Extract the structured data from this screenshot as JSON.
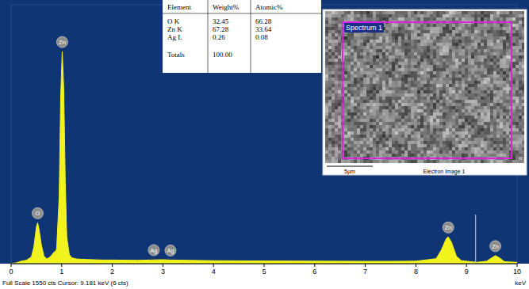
{
  "chart_data": {
    "type": "area",
    "color": "#f2f21c",
    "x_label": "keV",
    "footer": "Full Scale 1550 cts Cursor: 9.181 keV (6 cts)",
    "cursor_x": 9.181,
    "x": [
      0.0,
      0.1,
      0.2,
      0.3,
      0.4,
      0.45,
      0.5,
      0.525,
      0.55,
      0.6,
      0.65,
      0.7,
      0.75,
      0.8,
      0.85,
      0.88,
      0.9,
      0.95,
      0.98,
      1.01,
      1.04,
      1.07,
      1.1,
      1.15,
      1.2,
      1.3,
      1.5,
      1.8,
      2.0,
      2.5,
      2.98,
      3.15,
      3.5,
      4.0,
      5.0,
      6.0,
      7.0,
      7.5,
      8.0,
      8.4,
      8.5,
      8.6,
      8.64,
      8.7,
      8.8,
      8.9,
      9.2,
      9.4,
      9.5,
      9.57,
      9.65,
      9.75,
      10.0
    ],
    "values": [
      0,
      5,
      15,
      20,
      40,
      100,
      220,
      245,
      210,
      110,
      45,
      30,
      35,
      50,
      70,
      75,
      90,
      400,
      1000,
      1270,
      1050,
      500,
      160,
      55,
      35,
      28,
      25,
      22,
      22,
      20,
      24,
      22,
      20,
      18,
      16,
      15,
      14,
      14,
      15,
      30,
      80,
      150,
      160,
      130,
      45,
      18,
      8,
      15,
      35,
      48,
      35,
      12,
      8
    ],
    "xlim": [
      0,
      10
    ],
    "xticks": [
      0,
      1,
      2,
      3,
      4,
      5,
      6,
      7,
      8,
      9,
      10
    ],
    "ylim": [
      0,
      1550
    ],
    "tick_labels": "x",
    "grid": false,
    "annotations": [
      {
        "text": "O",
        "x": 0.525
      },
      {
        "text": "Zn",
        "x": 1.01
      },
      {
        "text": "Ag",
        "x": 2.82
      },
      {
        "text": "Ag",
        "x": 3.15
      },
      {
        "text": "Zn",
        "x": 8.64
      },
      {
        "text": "Zn",
        "x": 9.57
      }
    ],
    "table": {
      "columns": [
        "Element",
        "Weight%",
        "Atomic%"
      ],
      "rows": [
        [
          "O K",
          "32.45",
          "66.28"
        ],
        [
          "Zn K",
          "67.28",
          "33.64"
        ],
        [
          "Ag L",
          "0.26",
          "0.08"
        ]
      ],
      "totals": [
        "Totals",
        "100.00"
      ]
    },
    "image_inset": {
      "region_label": "Spectrum 1",
      "scale_bar": "5µm",
      "caption": "Electron Image 1"
    }
  }
}
